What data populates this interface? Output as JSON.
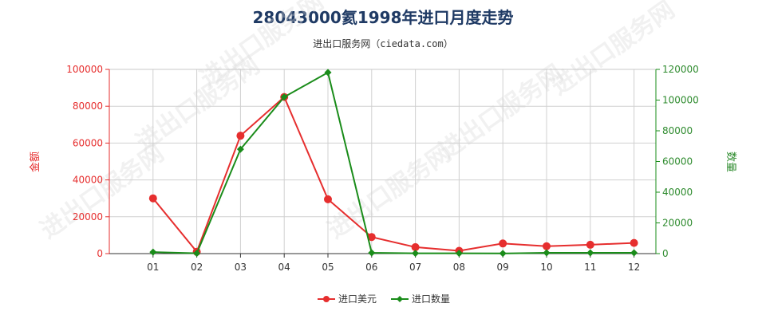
{
  "chart_data": {
    "type": "line",
    "title": "28043000氦1998年进口月度走势",
    "subtitle": "进出口服务网（ciedata.com）",
    "categories": [
      "01",
      "02",
      "03",
      "04",
      "05",
      "06",
      "07",
      "08",
      "09",
      "10",
      "11",
      "12"
    ],
    "series": [
      {
        "name": "进口美元",
        "axis": "left",
        "color": "#e62e2e",
        "values": [
          30000,
          1000,
          64000,
          85000,
          29500,
          9000,
          3500,
          1500,
          5500,
          4000,
          4800,
          5800
        ]
      },
      {
        "name": "进口数量",
        "axis": "right",
        "color": "#1a8c1a",
        "values": [
          1000,
          200,
          68000,
          102000,
          118000,
          500,
          200,
          200,
          100,
          500,
          500,
          500
        ]
      }
    ],
    "left_axis": {
      "label": "金额",
      "ylim": [
        0,
        100000
      ],
      "ticks": [
        0,
        20000,
        40000,
        60000,
        80000,
        100000
      ],
      "tick_labels": [
        "0",
        "20000",
        "40000",
        "60000",
        "80000",
        "100000"
      ],
      "color": "#e62e2e"
    },
    "right_axis": {
      "label": "数量",
      "ylim": [
        0,
        120000
      ],
      "ticks": [
        0,
        20000,
        40000,
        60000,
        80000,
        100000,
        120000
      ],
      "tick_labels": [
        "0",
        "20000",
        "40000",
        "60000",
        "80000",
        "100000",
        "120000"
      ],
      "color": "#1a8c1a"
    },
    "grid": true,
    "legend_position": "bottom-center",
    "watermark": "进出口服务网"
  }
}
